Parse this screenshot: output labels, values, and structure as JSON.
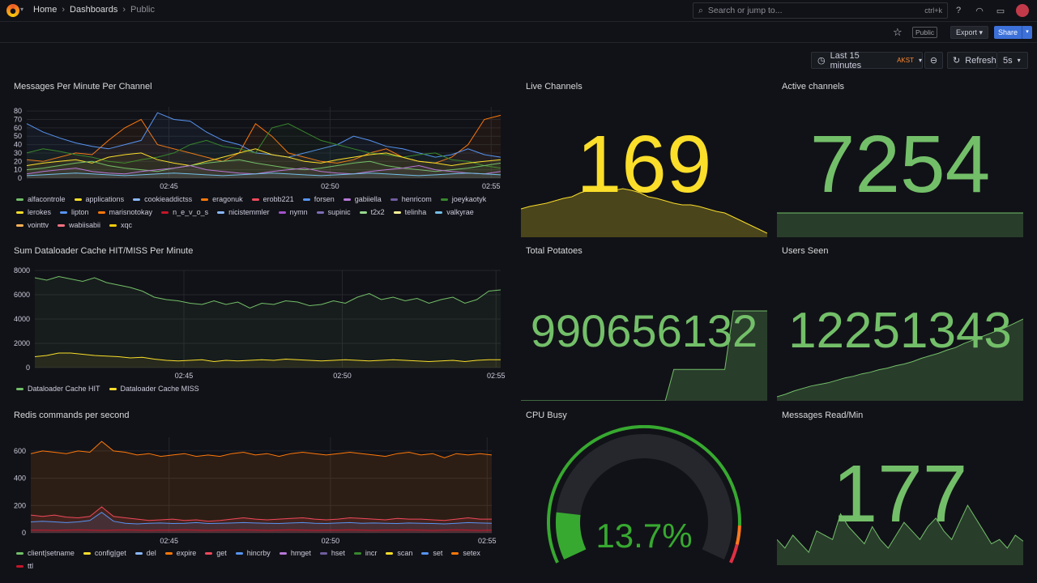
{
  "nav": {
    "breadcrumbs": [
      "Home",
      "Dashboards",
      "Public"
    ],
    "search_placeholder": "Search or jump to...",
    "search_shortcut": "ctrl+k"
  },
  "toolbar": {
    "public_badge": "Public",
    "export_label": "Export",
    "share_label": "Share",
    "time_range": "Last 15 minutes",
    "timezone": "AKST",
    "refresh_label": "Refresh",
    "refresh_interval": "5s"
  },
  "panels": {
    "messages": {
      "title": "Messages Per Minute Per Channel",
      "legend": [
        {
          "name": "alfacontrole",
          "color": "#73bf69"
        },
        {
          "name": "applications",
          "color": "#fade2a"
        },
        {
          "name": "cookieaddictss",
          "color": "#8ab8ff"
        },
        {
          "name": "eragonuk",
          "color": "#ff780a"
        },
        {
          "name": "erobb221",
          "color": "#f2495c"
        },
        {
          "name": "forsen",
          "color": "#5794f2"
        },
        {
          "name": "gabiiella",
          "color": "#b877d9"
        },
        {
          "name": "henricom",
          "color": "#705da0"
        },
        {
          "name": "joeykaotyk",
          "color": "#37872d"
        },
        {
          "name": "lerokes",
          "color": "#fade2a"
        },
        {
          "name": "lipton",
          "color": "#5794f2"
        },
        {
          "name": "marisnotokay",
          "color": "#ff780a"
        },
        {
          "name": "n_e_v_o_s",
          "color": "#c4162a"
        },
        {
          "name": "nicistemmler",
          "color": "#8ab8ff"
        },
        {
          "name": "nymn",
          "color": "#a352cc"
        },
        {
          "name": "supinic",
          "color": "#806eb7"
        },
        {
          "name": "t2x2",
          "color": "#96d98d"
        },
        {
          "name": "telinha",
          "color": "#fff899"
        },
        {
          "name": "valkyrae",
          "color": "#73bfe8"
        },
        {
          "name": "vointtv",
          "color": "#ffb357"
        },
        {
          "name": "wabiisabii",
          "color": "#ff7383"
        },
        {
          "name": "xqc",
          "color": "#f2cc0c"
        }
      ]
    },
    "cache": {
      "title": "Sum Dataloader Cache HIT/MISS Per Minute",
      "legend": [
        {
          "name": "Dataloader Cache HIT",
          "color": "#73bf69"
        },
        {
          "name": "Dataloader Cache MISS",
          "color": "#fade2a"
        }
      ]
    },
    "redis": {
      "title": "Redis commands per second",
      "legend": [
        {
          "name": "client|setname",
          "color": "#73bf69"
        },
        {
          "name": "config|get",
          "color": "#fade2a"
        },
        {
          "name": "del",
          "color": "#8ab8ff"
        },
        {
          "name": "expire",
          "color": "#ff780a"
        },
        {
          "name": "get",
          "color": "#f2495c"
        },
        {
          "name": "hincrby",
          "color": "#5794f2"
        },
        {
          "name": "hmget",
          "color": "#b877d9"
        },
        {
          "name": "hset",
          "color": "#705da0"
        },
        {
          "name": "incr",
          "color": "#37872d"
        },
        {
          "name": "scan",
          "color": "#fade2a"
        },
        {
          "name": "set",
          "color": "#5794f2"
        },
        {
          "name": "setex",
          "color": "#ff780a"
        },
        {
          "name": "ttl",
          "color": "#c4162a"
        }
      ]
    },
    "live_channels": {
      "title": "Live Channels",
      "value": "169",
      "color": "#fade2a"
    },
    "active_channels": {
      "title": "Active channels",
      "value": "7254",
      "color": "#73bf69"
    },
    "total_potatoes": {
      "title": "Total Potatoes",
      "value": "990656132",
      "color": "#73bf69"
    },
    "users_seen": {
      "title": "Users Seen",
      "value": "12251343",
      "color": "#73bf69"
    },
    "cpu_busy": {
      "title": "CPU Busy",
      "value": "13.7%",
      "percent": 13.7,
      "color": "#37a930"
    },
    "messages_read": {
      "title": "Messages Read/Min",
      "value": "177",
      "color": "#73bf69"
    }
  },
  "chart_data": [
    {
      "type": "line",
      "title": "Messages Per Minute Per Channel",
      "x_ticks": [
        "02:45",
        "02:50",
        "02:55"
      ],
      "y_ticks": [
        0,
        10,
        20,
        30,
        40,
        50,
        60,
        70,
        80
      ],
      "ylim": [
        0,
        85
      ],
      "series": [
        {
          "name": "eragonuk",
          "values": [
            22,
            20,
            25,
            30,
            28,
            45,
            60,
            70,
            40,
            35,
            30,
            25,
            20,
            30,
            65,
            50,
            30,
            25,
            20,
            18,
            22,
            30,
            35,
            25,
            20,
            18,
            25,
            40,
            70,
            75
          ]
        },
        {
          "name": "lipton",
          "values": [
            65,
            55,
            48,
            42,
            38,
            35,
            40,
            45,
            78,
            70,
            68,
            55,
            45,
            40,
            30,
            28,
            25,
            30,
            35,
            40,
            50,
            45,
            38,
            35,
            30,
            25,
            28,
            35,
            28,
            25
          ]
        },
        {
          "name": "joeykaotyk",
          "values": [
            30,
            35,
            32,
            28,
            25,
            20,
            18,
            22,
            25,
            30,
            40,
            45,
            38,
            35,
            30,
            60,
            65,
            55,
            45,
            40,
            35,
            30,
            28,
            25,
            28,
            30,
            22,
            20,
            15,
            12
          ]
        },
        {
          "name": "lerokes",
          "values": [
            15,
            18,
            20,
            22,
            18,
            25,
            28,
            30,
            22,
            18,
            15,
            20,
            25,
            30,
            35,
            28,
            25,
            20,
            18,
            22,
            25,
            28,
            30,
            25,
            20,
            18,
            15,
            18,
            20,
            22
          ]
        },
        {
          "name": "alfacontrole",
          "values": [
            10,
            12,
            15,
            18,
            20,
            15,
            12,
            10,
            8,
            12,
            15,
            18,
            20,
            22,
            18,
            15,
            12,
            10,
            12,
            15,
            18,
            20,
            15,
            12,
            10,
            8,
            10,
            12,
            15,
            18
          ]
        },
        {
          "name": "gabiiella",
          "values": [
            5,
            8,
            10,
            12,
            8,
            6,
            5,
            8,
            10,
            12,
            15,
            10,
            8,
            6,
            5,
            8,
            10,
            12,
            8,
            6,
            5,
            8,
            10,
            12,
            15,
            10,
            8,
            6,
            5,
            8
          ]
        },
        {
          "name": "valkyrae",
          "values": [
            3,
            4,
            5,
            6,
            5,
            4,
            3,
            4,
            5,
            6,
            5,
            4,
            3,
            4,
            5,
            6,
            5,
            4,
            3,
            4,
            5,
            6,
            5,
            4,
            3,
            4,
            5,
            6,
            5,
            4
          ]
        }
      ]
    },
    {
      "type": "area",
      "title": "Sum Dataloader Cache HIT/MISS Per Minute",
      "x_ticks": [
        "02:45",
        "02:50",
        "02:55"
      ],
      "y_ticks": [
        0,
        2000,
        4000,
        6000,
        8000
      ],
      "ylim": [
        0,
        8000
      ],
      "series": [
        {
          "name": "Dataloader Cache HIT",
          "values": [
            7400,
            7200,
            7500,
            7300,
            7100,
            7400,
            7000,
            6800,
            6600,
            6300,
            5800,
            5600,
            5500,
            5300,
            5200,
            5500,
            5200,
            5400,
            4900,
            5300,
            5200,
            5500,
            5400,
            5100,
            5200,
            5500,
            5300,
            5800,
            6100,
            5600,
            5800,
            5500,
            5700,
            5300,
            5600,
            5800,
            5300,
            5600,
            6300,
            6400
          ]
        },
        {
          "name": "Dataloader Cache MISS",
          "values": [
            900,
            1000,
            1200,
            1200,
            1100,
            1000,
            950,
            900,
            800,
            850,
            700,
            600,
            550,
            600,
            650,
            500,
            600,
            550,
            600,
            650,
            600,
            700,
            650,
            600,
            550,
            600,
            650,
            600,
            550,
            600,
            650,
            600,
            550,
            500,
            550,
            600,
            500,
            600,
            650,
            650
          ]
        }
      ]
    },
    {
      "type": "area",
      "title": "Redis commands per second",
      "x_ticks": [
        "02:45",
        "02:50",
        "02:55"
      ],
      "y_ticks": [
        0,
        200,
        400,
        600
      ],
      "ylim": [
        0,
        700
      ],
      "series": [
        {
          "name": "setex",
          "values": [
            580,
            600,
            590,
            580,
            600,
            590,
            670,
            600,
            590,
            570,
            580,
            560,
            570,
            580,
            560,
            570,
            560,
            580,
            590,
            570,
            580,
            560,
            580,
            590,
            580,
            570,
            580,
            590,
            580,
            570,
            560,
            580,
            590,
            570,
            580,
            550,
            580,
            570,
            580,
            570
          ]
        },
        {
          "name": "get",
          "values": [
            130,
            120,
            130,
            115,
            110,
            120,
            190,
            120,
            110,
            100,
            90,
            95,
            100,
            90,
            95,
            85,
            90,
            100,
            110,
            100,
            95,
            100,
            105,
            110,
            100,
            95,
            100,
            110,
            105,
            100,
            95,
            105,
            100,
            100,
            95,
            90,
            100,
            110,
            100,
            100
          ]
        },
        {
          "name": "hincrby",
          "values": [
            80,
            85,
            80,
            75,
            80,
            90,
            150,
            85,
            70,
            65,
            70,
            72,
            68,
            70,
            75,
            68,
            70,
            72,
            75,
            72,
            70,
            68,
            72,
            75,
            70,
            68,
            72,
            75,
            70,
            72,
            70,
            68,
            72,
            70,
            68,
            65,
            70,
            75,
            72,
            70
          ]
        },
        {
          "name": "ttl",
          "values": [
            20,
            20,
            18,
            20,
            22,
            20,
            18,
            20,
            22,
            20,
            18,
            20,
            20,
            22,
            20,
            18,
            20,
            20,
            22,
            20,
            18,
            20,
            22,
            20,
            18,
            20,
            20,
            22,
            20,
            18,
            20,
            20,
            22,
            20,
            18,
            20,
            22,
            20,
            18,
            20
          ]
        }
      ]
    },
    {
      "type": "area",
      "title": "Live Channels",
      "series": [
        {
          "name": "",
          "values": [
            35,
            38,
            40,
            42,
            45,
            48,
            50,
            55,
            58,
            60,
            60,
            58,
            60,
            58,
            55,
            50,
            48,
            45,
            42,
            40,
            40,
            38,
            35,
            32,
            30,
            25,
            20,
            15,
            10,
            5
          ]
        }
      ]
    },
    {
      "type": "area",
      "title": "Total Potatoes",
      "series": [
        {
          "name": "",
          "values": [
            0,
            0,
            0,
            0,
            0,
            0,
            0,
            0,
            0,
            0,
            0,
            0,
            0,
            0,
            0,
            0,
            0,
            0,
            35,
            35,
            35,
            35,
            35,
            35,
            35,
            100,
            100,
            100,
            100,
            100
          ]
        }
      ]
    },
    {
      "type": "area",
      "title": "Users Seen",
      "series": [
        {
          "name": "",
          "values": [
            5,
            8,
            12,
            15,
            18,
            20,
            22,
            25,
            28,
            30,
            33,
            35,
            38,
            40,
            43,
            45,
            48,
            52,
            55,
            58,
            62,
            65,
            70,
            74,
            78,
            82,
            86,
            90,
            95,
            100
          ]
        }
      ]
    },
    {
      "type": "area",
      "title": "Messages Read/Min",
      "series": [
        {
          "name": "",
          "values": [
            30,
            20,
            35,
            25,
            15,
            40,
            35,
            30,
            60,
            45,
            35,
            25,
            45,
            30,
            20,
            35,
            50,
            40,
            30,
            45,
            55,
            40,
            30,
            50,
            70,
            55,
            40,
            25,
            30,
            20,
            35,
            28
          ]
        }
      ]
    }
  ]
}
